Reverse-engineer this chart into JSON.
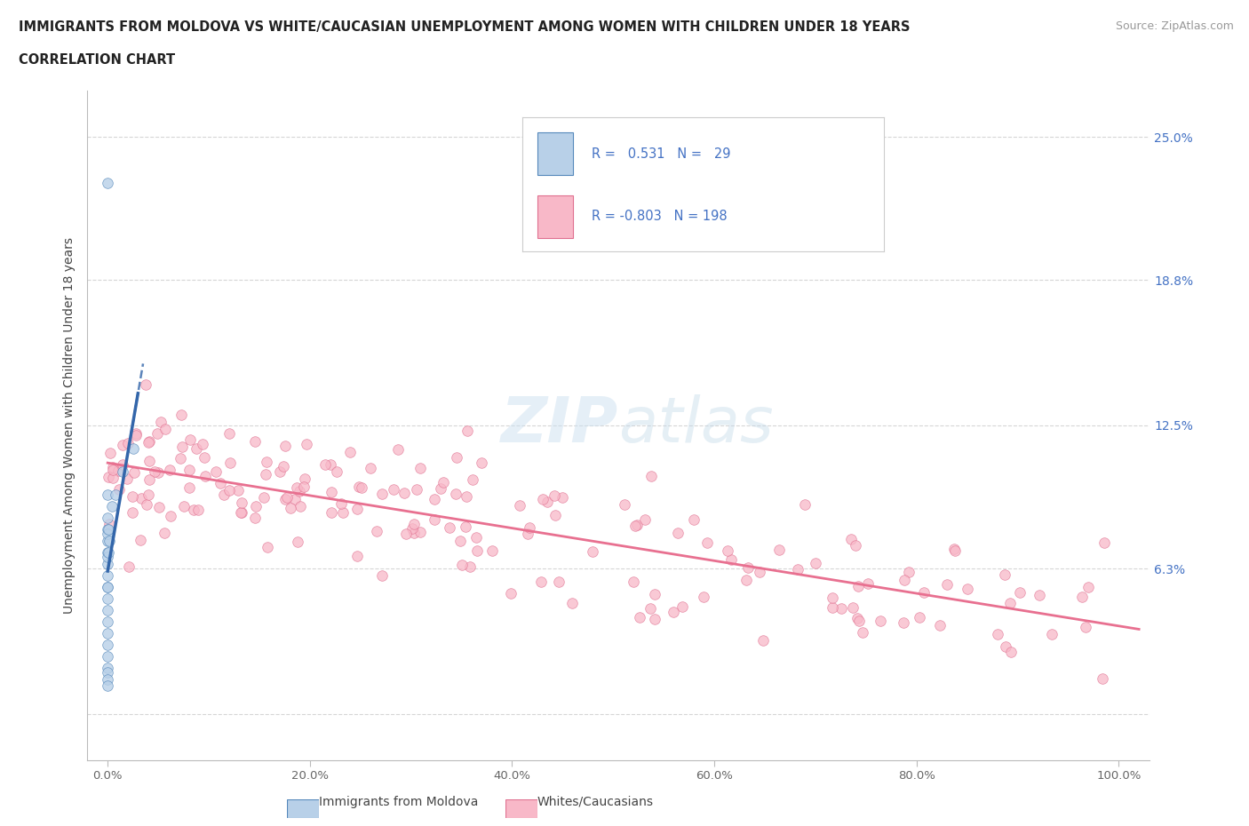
{
  "title": "IMMIGRANTS FROM MOLDOVA VS WHITE/CAUCASIAN UNEMPLOYMENT AMONG WOMEN WITH CHILDREN UNDER 18 YEARS",
  "subtitle": "CORRELATION CHART",
  "source": "Source: ZipAtlas.com",
  "ylabel": "Unemployment Among Women with Children Under 18 years",
  "ytick_values": [
    0.0,
    6.3,
    12.5,
    18.8,
    25.0
  ],
  "ytick_labels": [
    "",
    "6.3%",
    "12.5%",
    "18.8%",
    "25.0%"
  ],
  "xtick_values": [
    0.0,
    20.0,
    40.0,
    60.0,
    80.0,
    100.0
  ],
  "xtick_labels": [
    "0.0%",
    "20.0%",
    "40.0%",
    "60.0%",
    "80.0%",
    "100.0%"
  ],
  "xlim": [
    -2,
    103
  ],
  "ylim": [
    -2,
    27
  ],
  "color_blue_fill": "#b8d0e8",
  "color_blue_edge": "#5588bb",
  "color_pink_fill": "#f8b8c8",
  "color_pink_edge": "#e07090",
  "color_trend_blue": "#3366aa",
  "color_trend_pink": "#e87090",
  "color_grid": "#cccccc",
  "background_color": "#ffffff",
  "watermark_color": "#d8e8f0",
  "legend_label1": "Immigrants from Moldova",
  "legend_label2": "Whites/Caucasians",
  "mol_seed": 42,
  "white_seed": 99
}
